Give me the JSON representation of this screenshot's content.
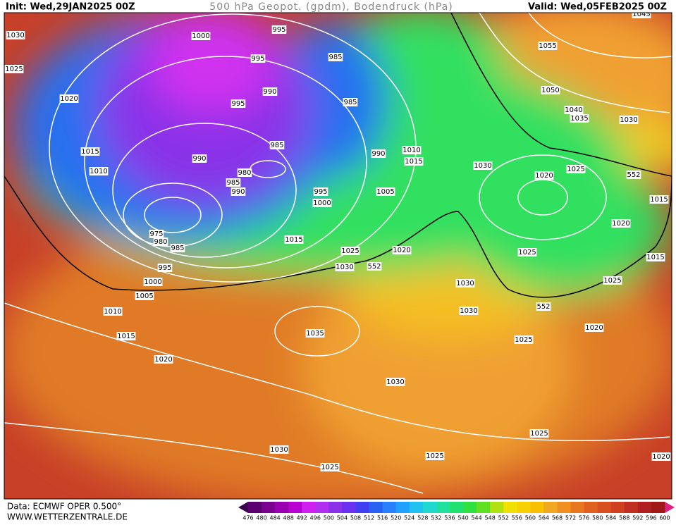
{
  "header": {
    "init": "Init: Wed,29JAN2025 00Z",
    "title": "500 hPa Geopot. (gpdm), Bodendruck (hPa)",
    "valid": "Valid: Wed,05FEB2025 00Z"
  },
  "isobar_labels": [
    "1030",
    "1025",
    "1020",
    "1015",
    "1010",
    "1000",
    "995",
    "995",
    "985",
    "990",
    "995",
    "985",
    "985",
    "990",
    "980",
    "985",
    "990",
    "990",
    "995",
    "1000",
    "1005",
    "1010",
    "1015",
    "975",
    "980",
    "985",
    "1015",
    "995",
    "1000",
    "1005",
    "1025",
    "1030",
    "552",
    "1020",
    "1030",
    "1020",
    "1025",
    "552",
    "1015",
    "1020",
    "1015",
    "1025",
    "1030",
    "1030",
    "552",
    "1025",
    "1020",
    "1025",
    "1010",
    "1015",
    "1020",
    "1035",
    "1030",
    "1030",
    "1025",
    "1025",
    "1025",
    "1020",
    "1055",
    "1050",
    "1040",
    "1035",
    "1030",
    "1045"
  ],
  "footer": {
    "source": "Data: ECMWF OPER 0.500°",
    "site": "WWW.WETTERZENTRALE.DE"
  },
  "colorbar": {
    "labels": [
      "476",
      "480",
      "484",
      "488",
      "492",
      "496",
      "500",
      "504",
      "508",
      "512",
      "516",
      "520",
      "524",
      "528",
      "532",
      "536",
      "540",
      "544",
      "548",
      "552",
      "556",
      "560",
      "564",
      "568",
      "572",
      "576",
      "580",
      "584",
      "588",
      "592",
      "596",
      "600"
    ],
    "colors": [
      "#3c0050",
      "#5a0070",
      "#7a0090",
      "#9a00b0",
      "#b800d0",
      "#d020f0",
      "#b030f0",
      "#8a30e8",
      "#6a30f0",
      "#4040f0",
      "#2860f0",
      "#2880ff",
      "#20a0ff",
      "#20c0f0",
      "#20d8d0",
      "#20e0a0",
      "#20e070",
      "#30e040",
      "#60e020",
      "#b0e010",
      "#f0e000",
      "#f8d000",
      "#f8c000",
      "#f0a820",
      "#f09020",
      "#e87820",
      "#e06020",
      "#d85020",
      "#d04020",
      "#c03020",
      "#b02020",
      "#a01818",
      "#e02080"
    ]
  }
}
